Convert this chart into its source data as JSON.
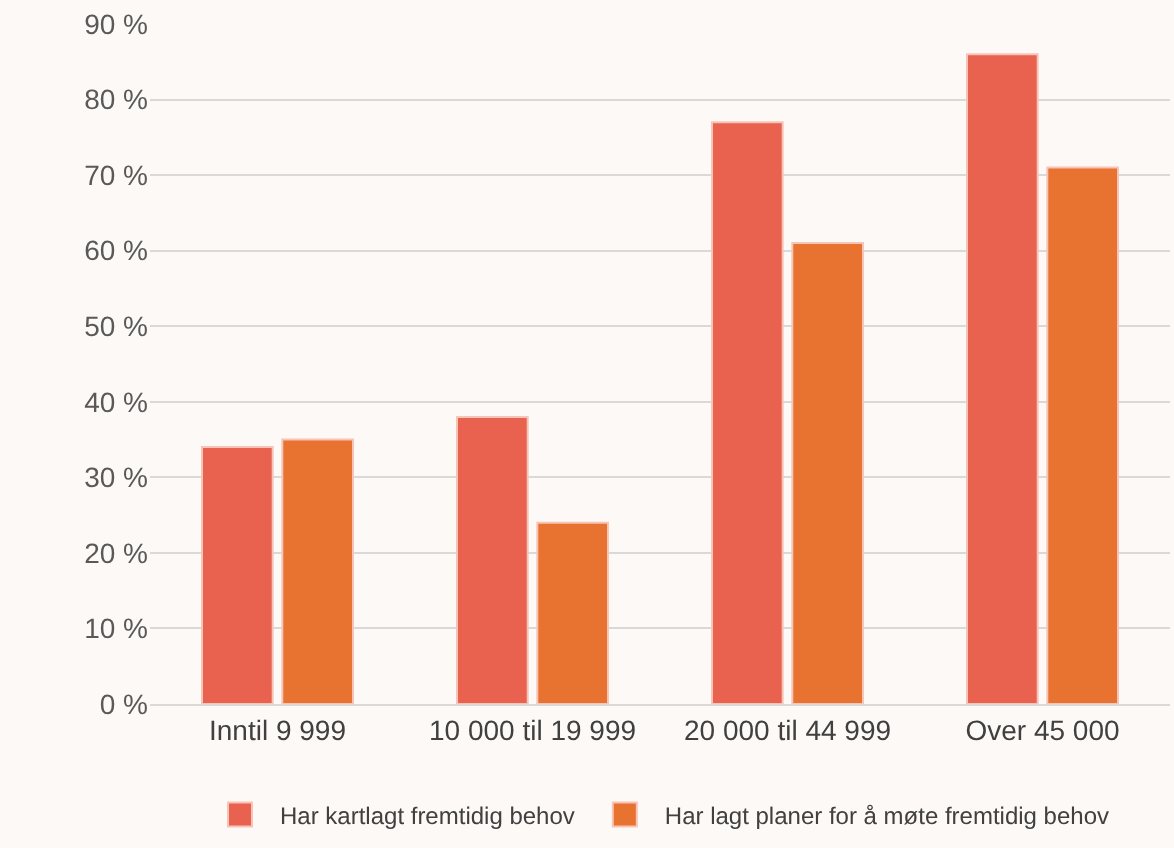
{
  "chart_data": {
    "type": "bar",
    "categories": [
      "Inntil 9 999",
      "10 000 til 19 999",
      "20 000 til 44 999",
      "Over 45 000"
    ],
    "series": [
      {
        "name": "Har kartlagt fremtidig behov",
        "color": "#e8624f",
        "values": [
          34,
          38,
          77,
          86
        ]
      },
      {
        "name": "Har lagt planer for å møte fremtidig behov",
        "color": "#e87331",
        "values": [
          35,
          24,
          61,
          71
        ]
      }
    ],
    "ylim": [
      0,
      90
    ],
    "yticks": [
      {
        "value": 0,
        "label": "0 %"
      },
      {
        "value": 10,
        "label": "10 %"
      },
      {
        "value": 20,
        "label": "20 %"
      },
      {
        "value": 30,
        "label": "30 %"
      },
      {
        "value": 40,
        "label": "40 %"
      },
      {
        "value": 50,
        "label": "50 %"
      },
      {
        "value": 60,
        "label": "60 %"
      },
      {
        "value": 70,
        "label": "70 %"
      },
      {
        "value": 80,
        "label": "80 %"
      },
      {
        "value": 90,
        "label": "90 %"
      }
    ],
    "grid": "y",
    "legend": "bottom"
  }
}
